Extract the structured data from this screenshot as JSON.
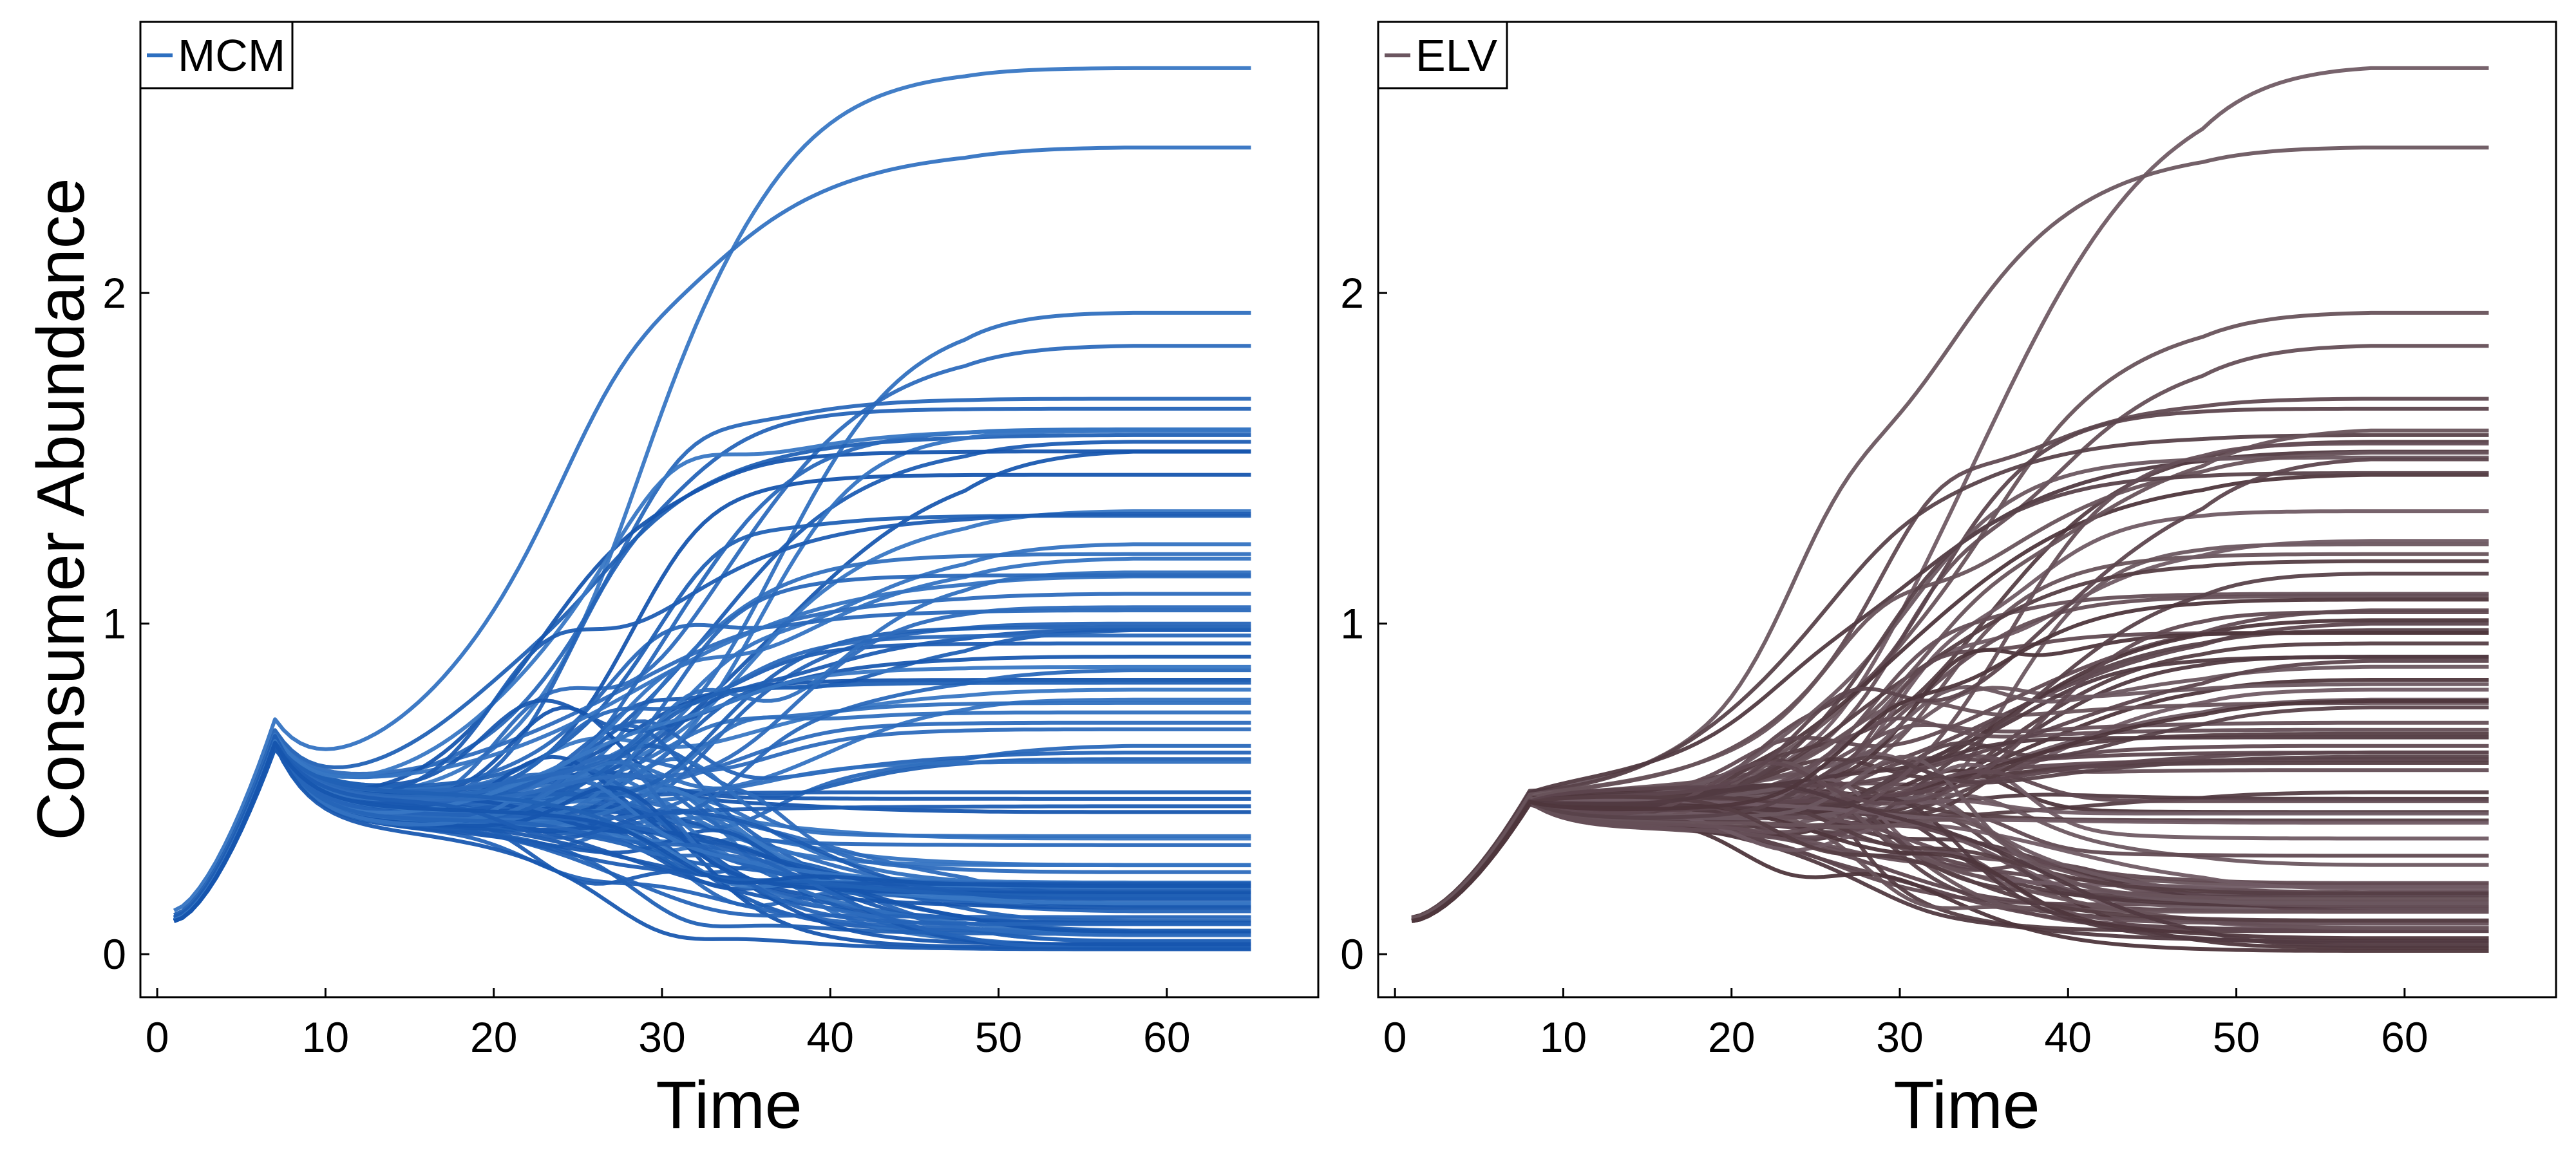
{
  "chart_data": [
    {
      "type": "line",
      "panel": "left",
      "legend": {
        "label": "MCM",
        "color": "#2d6fc0",
        "placement": "top-left"
      },
      "xlabel": "Time",
      "ylabel": "Consumer Abundance",
      "xlim": [
        -1,
        69
      ],
      "ylim": [
        -0.13,
        2.82
      ],
      "xticks": [
        0,
        10,
        20,
        30,
        40,
        50,
        60
      ],
      "yticks": [
        0,
        1,
        2
      ],
      "series_count": 100,
      "color_light": "#3877c4",
      "color_dark": "#0a4aa6",
      "x_start": 1,
      "x_end": 65,
      "early_peak": {
        "x": 7,
        "y": 0.64
      },
      "highlighted_final_values": [
        2.68,
        2.44,
        1.94,
        1.84,
        1.68,
        1.65,
        1.57,
        1.55,
        1.52,
        1.45,
        1.34,
        1.24,
        1.21,
        1.09,
        1.04,
        1.0,
        0.98,
        0.94,
        0.9,
        0.83,
        0.8,
        0.77,
        0.76,
        0.7,
        0.63,
        0.61,
        0.59,
        0.49,
        0.47,
        0.43,
        0.35,
        0.27,
        0.21,
        0.18,
        0.15,
        0.13,
        0.1,
        0.07,
        0.04,
        0.02
      ]
    },
    {
      "type": "line",
      "panel": "right",
      "legend": {
        "label": "ELV",
        "color": "#6b5660",
        "placement": "top-left"
      },
      "xlabel": "Time",
      "ylabel": "",
      "xlim": [
        -1,
        69
      ],
      "ylim": [
        -0.13,
        2.82
      ],
      "xticks": [
        0,
        10,
        20,
        30,
        40,
        50,
        60
      ],
      "yticks": [
        0,
        1,
        2
      ],
      "series_count": 100,
      "color_light": "#705b64",
      "color_dark": "#42292f",
      "x_start": 1,
      "x_end": 65,
      "early_peak": {
        "x": 8,
        "y": 0.46
      },
      "highlighted_final_values": [
        2.68,
        2.44,
        1.94,
        1.84,
        1.68,
        1.65,
        1.57,
        1.55,
        1.52,
        1.45,
        1.34,
        1.24,
        1.21,
        1.09,
        1.04,
        1.0,
        0.98,
        0.94,
        0.9,
        0.83,
        0.8,
        0.77,
        0.76,
        0.7,
        0.63,
        0.61,
        0.59,
        0.49,
        0.47,
        0.43,
        0.35,
        0.27,
        0.21,
        0.18,
        0.15,
        0.13,
        0.1,
        0.07,
        0.04,
        0.02
      ]
    }
  ]
}
